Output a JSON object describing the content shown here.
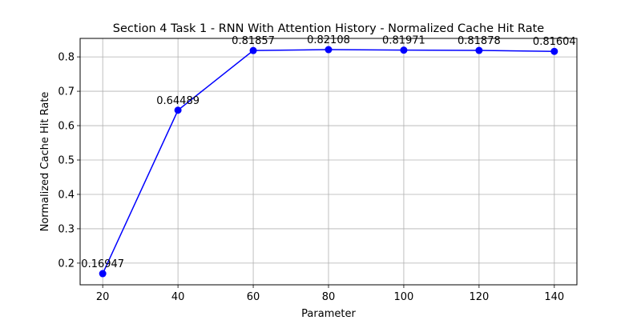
{
  "chart_data": {
    "type": "line",
    "title": "Section 4 Task 1 - RNN With Attention History - Normalized Cache Hit Rate",
    "xlabel": "Parameter",
    "ylabel": "Normalized Cache Hit Rate",
    "x": [
      20,
      40,
      60,
      80,
      100,
      120,
      140
    ],
    "x_ticks": [
      20,
      40,
      60,
      80,
      100,
      120,
      140
    ],
    "y_ticks": [
      0.2,
      0.3,
      0.4,
      0.5,
      0.6,
      0.7,
      0.8
    ],
    "xlim": [
      14,
      146
    ],
    "ylim": [
      0.1369,
      0.8538
    ],
    "grid": true,
    "series": [
      {
        "values": [
          0.16947,
          0.64489,
          0.81857,
          0.82108,
          0.81971,
          0.81878,
          0.81604
        ],
        "labels": [
          "0.16947",
          "0.64489",
          "0.81857",
          "0.82108",
          "0.81971",
          "0.81878",
          "0.81604"
        ],
        "color": "#0000ff",
        "marker": "circle"
      }
    ]
  }
}
